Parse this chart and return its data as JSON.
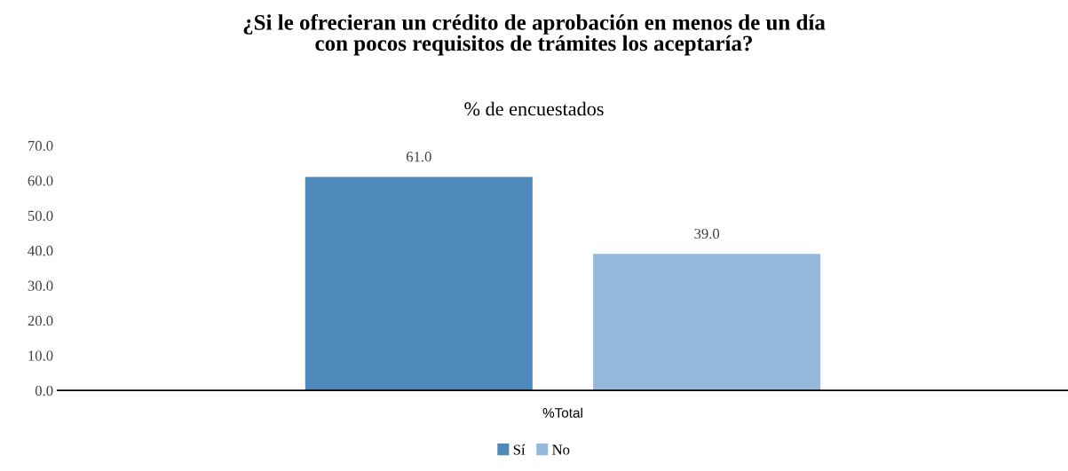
{
  "chart_data": {
    "type": "bar",
    "title": "¿Si le ofrecieran un crédito de aprobación en menos de un día\ncon pocos requisitos de trámites los aceptaría?",
    "subtitle": "% de encuestados",
    "categories": [
      "%Total"
    ],
    "series": [
      {
        "name": "Sí",
        "color": "#4f88bb",
        "values": [
          61.0
        ],
        "value_labels": [
          "61.0"
        ]
      },
      {
        "name": "No",
        "color": "#97b8dd",
        "values": [
          39.0
        ],
        "value_labels": [
          "39.0"
        ]
      }
    ],
    "ylim": [
      0,
      70
    ],
    "yticks": [
      {
        "value": 0,
        "label": "0.0"
      },
      {
        "value": 10,
        "label": "10.0"
      },
      {
        "value": 20,
        "label": "20.0"
      },
      {
        "value": 30,
        "label": "30.0"
      },
      {
        "value": 40,
        "label": "40.0"
      },
      {
        "value": 50,
        "label": "50.0"
      },
      {
        "value": 60,
        "label": "60.0"
      },
      {
        "value": 70,
        "label": "70.0"
      }
    ],
    "grid": false,
    "legend": "bottom"
  }
}
